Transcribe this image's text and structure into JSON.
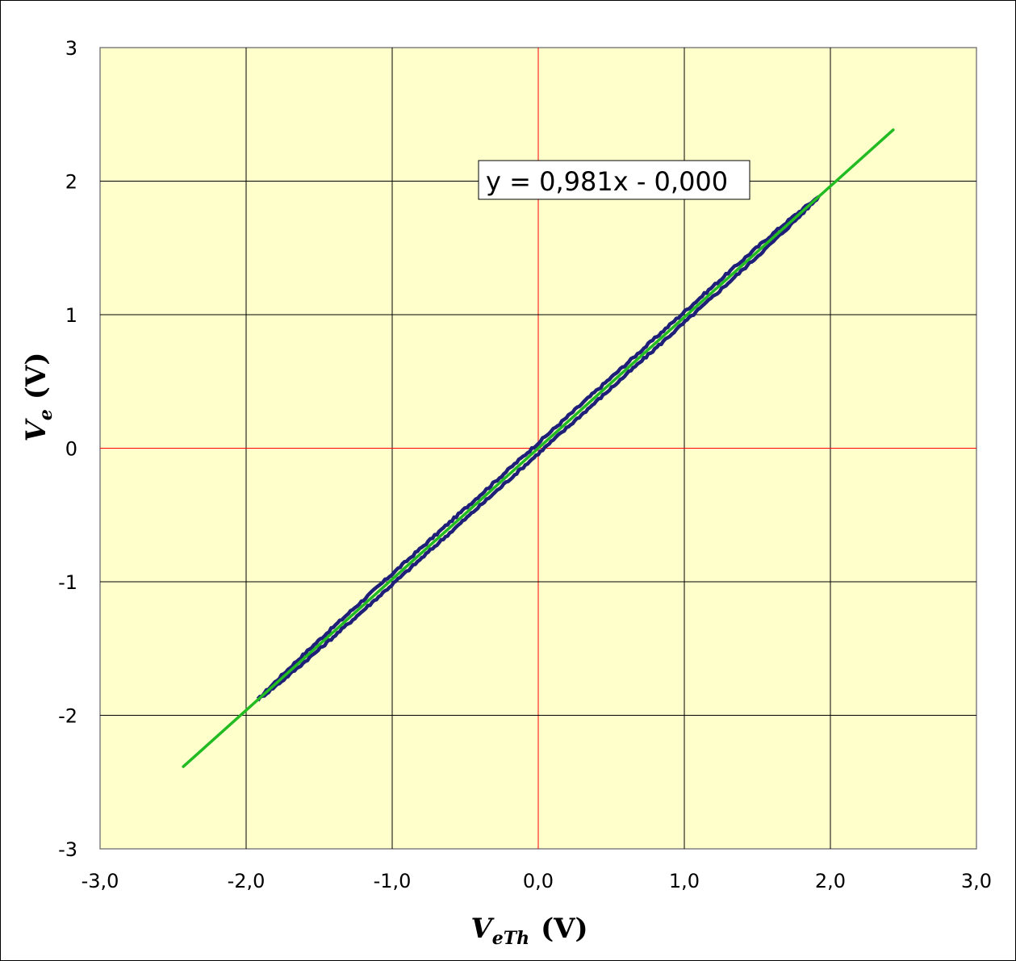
{
  "chart_data": {
    "type": "scatter",
    "xlim": [
      -3.0,
      3.0
    ],
    "ylim": [
      -3,
      3
    ],
    "x_ticks": [
      -3.0,
      -2.0,
      -1.0,
      0.0,
      1.0,
      2.0,
      3.0
    ],
    "x_tick_labels": [
      "-3,0",
      "-2,0",
      "-1,0",
      "0,0",
      "1,0",
      "2,0",
      "3,0"
    ],
    "y_ticks": [
      -3,
      -2,
      -1,
      0,
      1,
      2,
      3
    ],
    "y_tick_labels": [
      "-3",
      "-2",
      "-1",
      "0",
      "1",
      "2",
      "3"
    ],
    "xlabel": {
      "main": "V",
      "sub": "eTh",
      "unit": "(V)"
    },
    "ylabel": {
      "main": "V",
      "sub": "e",
      "unit": "(V)"
    },
    "grid": true,
    "plot_background": "#ffffcc",
    "grid_color": "#000000",
    "zero_line_color": "#ff0000",
    "series": [
      {
        "kind": "hysteresis-loop",
        "color": "#1f1f7a",
        "x_range": [
          -1.92,
          1.92
        ],
        "slope": 0.981,
        "upper_offset": 0.04,
        "lower_offset": -0.04
      },
      {
        "kind": "trendline",
        "color": "#22bb22",
        "x": [
          -2.43,
          2.43
        ],
        "y": [
          -2.384,
          2.384
        ],
        "equation_label": "y = 0,981x - 0,000"
      }
    ]
  }
}
